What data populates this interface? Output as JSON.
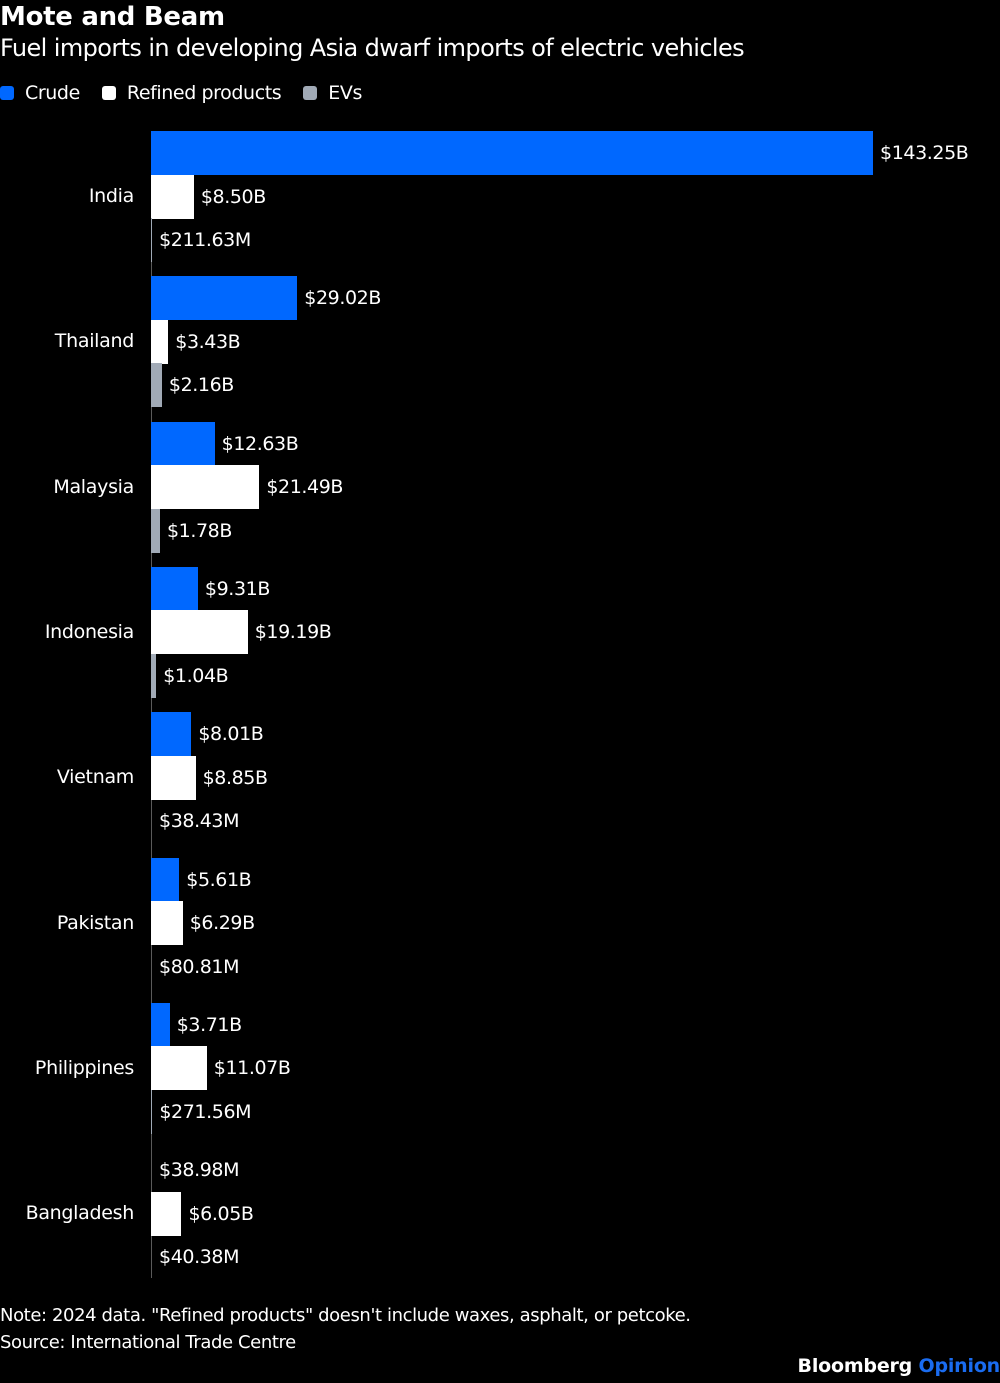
{
  "header": {
    "title": "Mote and Beam",
    "subtitle": "Fuel imports in developing Asia dwarf imports of electric vehicles"
  },
  "legend": [
    {
      "label": "Crude",
      "color": "#0068ff"
    },
    {
      "label": "Refined products",
      "color": "#ffffff"
    },
    {
      "label": "EVs",
      "color": "#a1aab6"
    }
  ],
  "footer": {
    "note": "Note: 2024 data. \"Refined products\" doesn't include waxes, asphalt, or petcoke.",
    "source": "Source: International Trade Centre",
    "brand_primary": "Bloomberg",
    "brand_secondary": "Opinion"
  },
  "chart_data": {
    "type": "bar",
    "orientation": "horizontal",
    "title": "Mote and Beam",
    "subtitle": "Fuel imports in developing Asia dwarf imports of electric vehicles",
    "xlabel": "",
    "ylabel": "",
    "unit": "USD billions",
    "grid": false,
    "legend_position": "top-left",
    "categories": [
      "India",
      "Thailand",
      "Malaysia",
      "Indonesia",
      "Vietnam",
      "Pakistan",
      "Philippines",
      "Bangladesh"
    ],
    "series": [
      {
        "name": "Crude",
        "color": "#0068ff",
        "values": [
          143.25,
          29.02,
          12.63,
          9.31,
          8.01,
          5.61,
          3.71,
          0.03898
        ],
        "labels": [
          "$143.25B",
          "$29.02B",
          "$12.63B",
          "$9.31B",
          "$8.01B",
          "$5.61B",
          "$3.71B",
          "$38.98M"
        ]
      },
      {
        "name": "Refined products",
        "color": "#ffffff",
        "values": [
          8.5,
          3.43,
          21.49,
          19.19,
          8.85,
          6.29,
          11.07,
          6.05
        ],
        "labels": [
          "$8.50B",
          "$3.43B",
          "$21.49B",
          "$19.19B",
          "$8.85B",
          "$6.29B",
          "$11.07B",
          "$6.05B"
        ]
      },
      {
        "name": "EVs",
        "color": "#a1aab6",
        "values": [
          0.21163,
          2.16,
          1.78,
          1.04,
          0.03843,
          0.08081,
          0.27156,
          0.04038
        ],
        "labels": [
          "$211.63M",
          "$2.16B",
          "$1.78B",
          "$1.04B",
          "$38.43M",
          "$80.81M",
          "$271.56M",
          "$40.38M"
        ]
      }
    ],
    "xlim": [
      0,
      143.25
    ],
    "annotations": [
      "Note: 2024 data. \"Refined products\" doesn't include waxes, asphalt, or petcoke.",
      "Source: International Trade Centre"
    ]
  }
}
